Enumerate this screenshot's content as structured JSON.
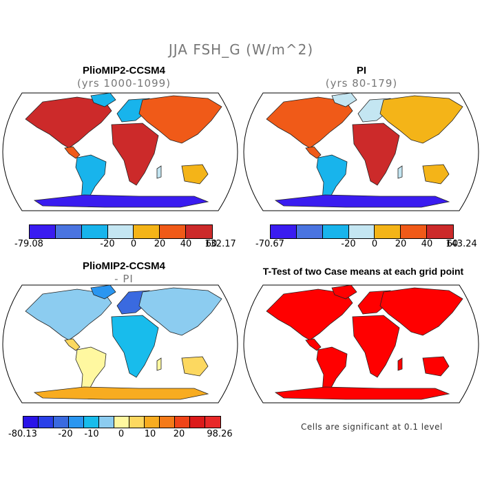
{
  "figure": {
    "title": "JJA FSH_G (W/m^2)"
  },
  "panels": {
    "top_left": {
      "title": "PlioMIP2-CCSM4",
      "subtitle": "(yrs 1000-1099)"
    },
    "top_right": {
      "title": "PI",
      "subtitle": "(yrs 80-179)"
    },
    "bottom_left": {
      "title": "PlioMIP2-CCSM4",
      "subtitle": "- PI"
    },
    "bottom_right": {
      "title": "T-Test of two Case means at each grid point",
      "note": "Cells are significant at 0.1 level"
    }
  },
  "colorbars": {
    "top_left": {
      "colors": [
        "#3a1cf0",
        "#4a74e0",
        "#18b4ec",
        "#c4e6f2",
        "#f4b418",
        "#f05a18",
        "#cc2a2a"
      ],
      "labels": [
        "-79.08",
        "-20",
        "0",
        "20",
        "40",
        "60",
        "132.17"
      ]
    },
    "top_right": {
      "colors": [
        "#3a1cf0",
        "#4a74e0",
        "#18b4ec",
        "#c4e6f2",
        "#f4b418",
        "#f05a18",
        "#cc2a2a"
      ],
      "labels": [
        "-70.67",
        "-20",
        "0",
        "20",
        "40",
        "60",
        "143.24"
      ]
    },
    "bottom_left": {
      "colors": [
        "#2a14e8",
        "#2a40e8",
        "#3a6ae0",
        "#2a96f0",
        "#18bcec",
        "#8cccf0",
        "#fff8a0",
        "#fcd860",
        "#f8ac20",
        "#f47a18",
        "#f04418",
        "#dc1a1a",
        "#e82828"
      ],
      "labels": [
        "-80.13",
        "-20",
        "-10",
        "0",
        "10",
        "20",
        "98.26"
      ]
    }
  },
  "colors": {
    "significant": "#ff0000",
    "outline": "#000000",
    "title_gray": "#777777"
  }
}
